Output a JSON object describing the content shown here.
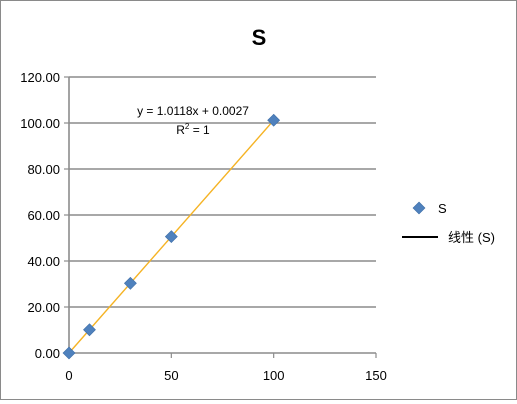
{
  "chart_data": {
    "type": "scatter",
    "title": "S",
    "xlabel": "",
    "ylabel": "",
    "xlim": [
      0,
      150
    ],
    "ylim": [
      0,
      120
    ],
    "x_ticks": [
      "0",
      "50",
      "100",
      "150"
    ],
    "y_ticks": [
      "0.00",
      "20.00",
      "40.00",
      "60.00",
      "80.00",
      "100.00",
      "120.00"
    ],
    "grid": "horizontal",
    "legend_position": "right",
    "series": [
      {
        "name": "S",
        "marker": "diamond",
        "color": "#4F81BD",
        "x": [
          0,
          10,
          30,
          50,
          100
        ],
        "y": [
          0,
          10.1,
          30.3,
          50.6,
          101.2
        ]
      }
    ],
    "trendline": {
      "name": "线性 (S)",
      "type": "linear",
      "color": "#F5B324",
      "slope": 1.0118,
      "intercept": 0.0027,
      "equation": "y = 1.0118x + 0.0027",
      "r_squared_label": "R",
      "r_squared_sup": "2",
      "r_squared_value": " = 1"
    }
  }
}
